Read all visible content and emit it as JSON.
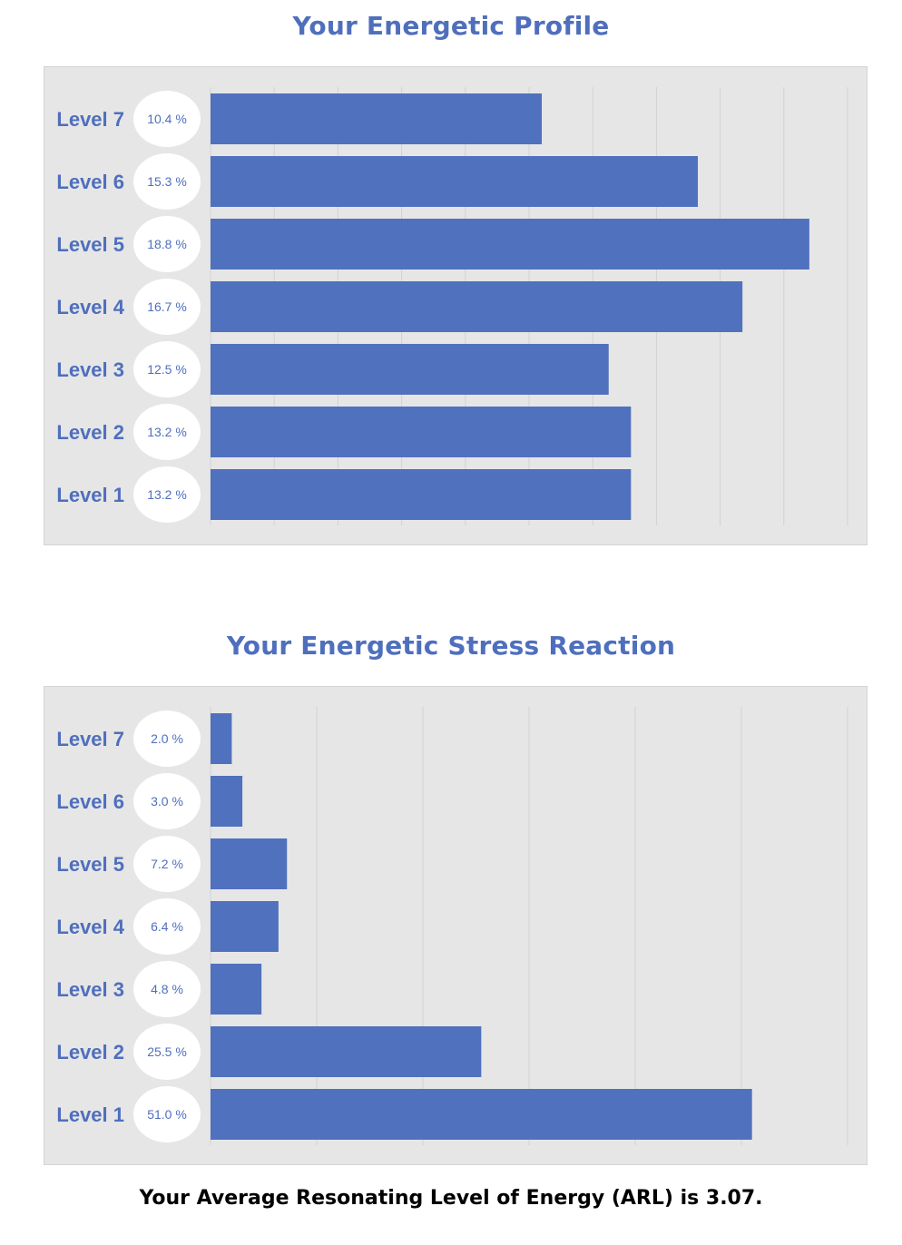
{
  "chart_data": [
    {
      "type": "bar",
      "orientation": "horizontal",
      "title": "Your Energetic Profile",
      "categories": [
        "Level 7",
        "Level 6",
        "Level 5",
        "Level 4",
        "Level 3",
        "Level 2",
        "Level 1"
      ],
      "values": [
        10.4,
        15.3,
        18.8,
        16.7,
        12.5,
        13.2,
        13.2
      ],
      "data_labels": [
        "10.4 %",
        "15.3 %",
        "18.8 %",
        "16.7 %",
        "12.5 %",
        "13.2 %",
        "13.2 %"
      ],
      "xlim": [
        0,
        20
      ],
      "grid": true,
      "legend": "none"
    },
    {
      "type": "bar",
      "orientation": "horizontal",
      "title": "Your Energetic Stress Reaction",
      "categories": [
        "Level 7",
        "Level 6",
        "Level 5",
        "Level 4",
        "Level 3",
        "Level 2",
        "Level 1"
      ],
      "values": [
        2.0,
        3.0,
        7.2,
        6.4,
        4.8,
        25.5,
        51.0
      ],
      "data_labels": [
        "2.0 %",
        "3.0 %",
        "7.2 %",
        "6.4 %",
        "4.8 %",
        "25.5 %",
        "51.0 %"
      ],
      "xlim": [
        0,
        60
      ],
      "grid": true,
      "legend": "none"
    }
  ],
  "colors": {
    "bar": "#5071bd",
    "label_text": "#4f6fbd",
    "panel_bg": "#e6e6e6",
    "gridline": "#d2d2d2",
    "bubble": "#ffffff"
  },
  "summary": "Your Average Resonating Level of Energy (ARL) is 3.07."
}
